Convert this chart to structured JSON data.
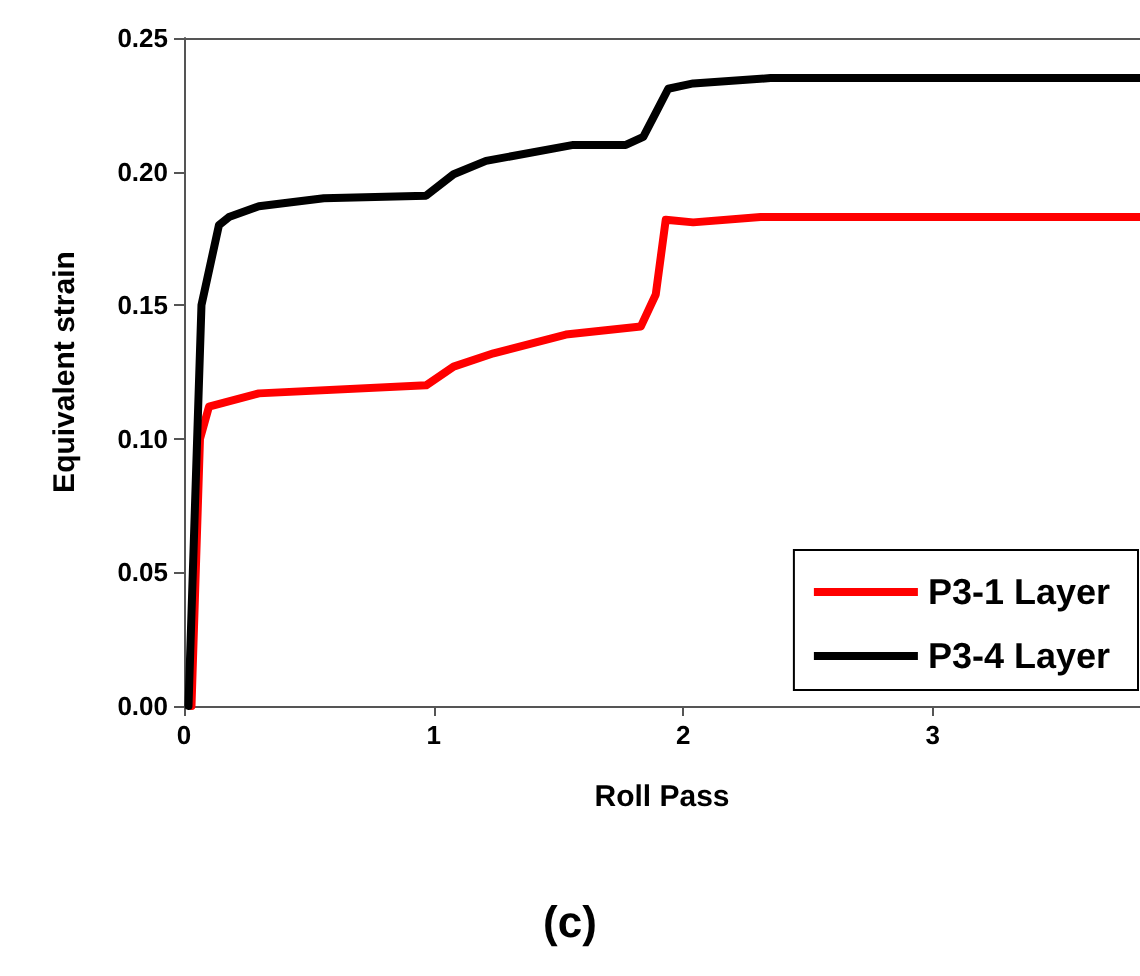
{
  "chart_data": {
    "type": "line",
    "xlabel": "Roll Pass",
    "ylabel": "Equivalent strain",
    "annotations": [
      "(c)"
    ],
    "xlim": [
      0,
      3.83
    ],
    "xticks": [
      0,
      1,
      2,
      3
    ],
    "ylim": [
      0,
      0.25
    ],
    "yticks": [
      {
        "value": 0,
        "label": "0.00"
      },
      {
        "value": 0.05,
        "label": "0.05"
      },
      {
        "value": 0.1,
        "label": "0.10"
      },
      {
        "value": 0.15,
        "label": "0.15"
      },
      {
        "value": 0.2,
        "label": "0.20"
      },
      {
        "value": 0.25,
        "label": "0.25"
      }
    ],
    "grid": false,
    "legend": "bottom right",
    "marker": "none",
    "line_style": "solid",
    "series": [
      {
        "name": "P3-1 Layer",
        "color": "#ff0000",
        "x": [
          0.03,
          0.064,
          0.1,
          0.3,
          0.97,
          1.08,
          1.24,
          1.53,
          1.83,
          1.89,
          1.93,
          2.04,
          2.31,
          3.83
        ],
        "values": [
          0,
          0.1,
          0.112,
          0.117,
          0.12,
          0.127,
          0.132,
          0.139,
          0.142,
          0.154,
          0.182,
          0.181,
          0.183,
          0.183
        ]
      },
      {
        "name": "P3-4 Layer",
        "color": "#000000",
        "x": [
          0.018,
          0.07,
          0.14,
          0.18,
          0.3,
          0.56,
          0.97,
          1.08,
          1.21,
          1.56,
          1.77,
          1.84,
          1.89,
          1.94,
          2.04,
          2.35,
          3.83
        ],
        "values": [
          0,
          0.15,
          0.18,
          0.183,
          0.187,
          0.19,
          0.191,
          0.199,
          0.204,
          0.21,
          0.21,
          0.213,
          0.222,
          0.231,
          0.233,
          0.235,
          0.235
        ]
      }
    ]
  }
}
